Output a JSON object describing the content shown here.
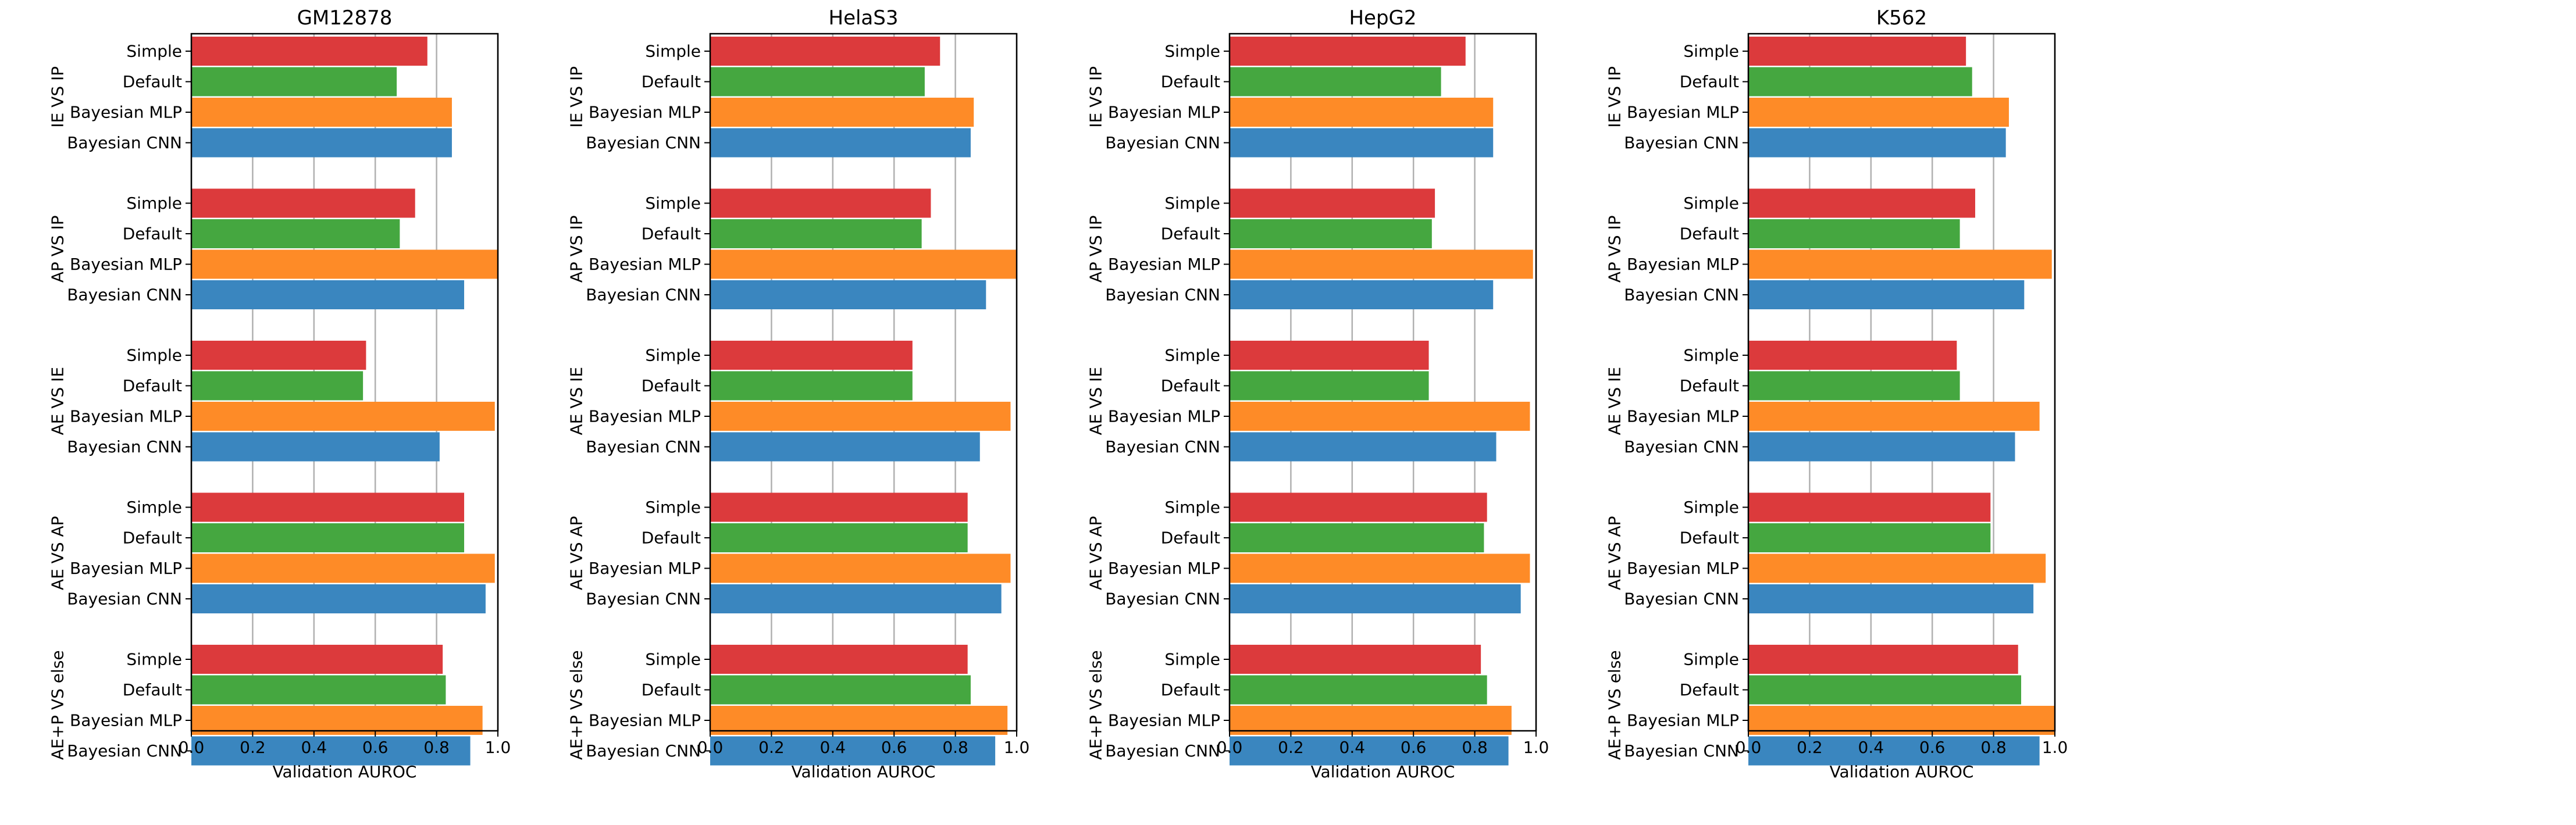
{
  "colors": {
    "Simple": "#dc3a3c",
    "Default": "#45a740",
    "Bayesian MLP": "#fe8b27",
    "Bayesian CNN": "#3a86bf",
    "grid": "#b0b0b0",
    "axis": "#000000"
  },
  "chart_data": [
    {
      "type": "bar",
      "orientation": "horizontal",
      "title": "GM12878",
      "xlabel": "Validation AUROC",
      "xlim": [
        0,
        1
      ],
      "xticks": [
        "0.0",
        "0.2",
        "0.4",
        "0.6",
        "0.8",
        "1.0"
      ],
      "grid": "vertical",
      "categories": [
        "Simple",
        "Default",
        "Bayesian MLP",
        "Bayesian CNN"
      ],
      "groups": [
        {
          "name": "IE VS IP",
          "values": [
            0.77,
            0.67,
            0.85,
            0.85
          ]
        },
        {
          "name": "AP VS IP",
          "values": [
            0.73,
            0.68,
            1.0,
            0.89
          ]
        },
        {
          "name": "AE VS IE",
          "values": [
            0.57,
            0.56,
            0.99,
            0.81
          ]
        },
        {
          "name": "AE VS AP",
          "values": [
            0.89,
            0.89,
            0.99,
            0.96
          ]
        },
        {
          "name": "AE+P VS else",
          "values": [
            0.82,
            0.83,
            0.95,
            0.91
          ]
        }
      ]
    },
    {
      "type": "bar",
      "orientation": "horizontal",
      "title": "HelaS3",
      "xlabel": "Validation AUROC",
      "xlim": [
        0,
        1
      ],
      "xticks": [
        "0.0",
        "0.2",
        "0.4",
        "0.6",
        "0.8",
        "1.0"
      ],
      "grid": "vertical",
      "categories": [
        "Simple",
        "Default",
        "Bayesian MLP",
        "Bayesian CNN"
      ],
      "groups": [
        {
          "name": "IE VS IP",
          "values": [
            0.75,
            0.7,
            0.86,
            0.85
          ]
        },
        {
          "name": "AP VS IP",
          "values": [
            0.72,
            0.69,
            1.0,
            0.9
          ]
        },
        {
          "name": "AE VS IE",
          "values": [
            0.66,
            0.66,
            0.98,
            0.88
          ]
        },
        {
          "name": "AE VS AP",
          "values": [
            0.84,
            0.84,
            0.98,
            0.95
          ]
        },
        {
          "name": "AE+P VS else",
          "values": [
            0.84,
            0.85,
            0.97,
            0.93
          ]
        }
      ]
    },
    {
      "type": "bar",
      "orientation": "horizontal",
      "title": "HepG2",
      "xlabel": "Validation AUROC",
      "xlim": [
        0,
        1
      ],
      "xticks": [
        "0.0",
        "0.2",
        "0.4",
        "0.6",
        "0.8",
        "1.0"
      ],
      "grid": "vertical",
      "categories": [
        "Simple",
        "Default",
        "Bayesian MLP",
        "Bayesian CNN"
      ],
      "groups": [
        {
          "name": "IE VS IP",
          "values": [
            0.77,
            0.69,
            0.86,
            0.86
          ]
        },
        {
          "name": "AP VS IP",
          "values": [
            0.67,
            0.66,
            0.99,
            0.86
          ]
        },
        {
          "name": "AE VS IE",
          "values": [
            0.65,
            0.65,
            0.98,
            0.87
          ]
        },
        {
          "name": "AE VS AP",
          "values": [
            0.84,
            0.83,
            0.98,
            0.95
          ]
        },
        {
          "name": "AE+P VS else",
          "values": [
            0.82,
            0.84,
            0.92,
            0.91
          ]
        }
      ]
    },
    {
      "type": "bar",
      "orientation": "horizontal",
      "title": "K562",
      "xlabel": "Validation AUROC",
      "xlim": [
        0,
        1
      ],
      "xticks": [
        "0.0",
        "0.2",
        "0.4",
        "0.6",
        "0.8",
        "1.0"
      ],
      "grid": "vertical",
      "categories": [
        "Simple",
        "Default",
        "Bayesian MLP",
        "Bayesian CNN"
      ],
      "groups": [
        {
          "name": "IE VS IP",
          "values": [
            0.71,
            0.73,
            0.85,
            0.84
          ]
        },
        {
          "name": "AP VS IP",
          "values": [
            0.74,
            0.69,
            0.99,
            0.9
          ]
        },
        {
          "name": "AE VS IE",
          "values": [
            0.68,
            0.69,
            0.95,
            0.87
          ]
        },
        {
          "name": "AE VS AP",
          "values": [
            0.79,
            0.79,
            0.97,
            0.93
          ]
        },
        {
          "name": "AE+P VS else",
          "values": [
            0.88,
            0.89,
            1.0,
            0.95
          ]
        }
      ]
    }
  ]
}
